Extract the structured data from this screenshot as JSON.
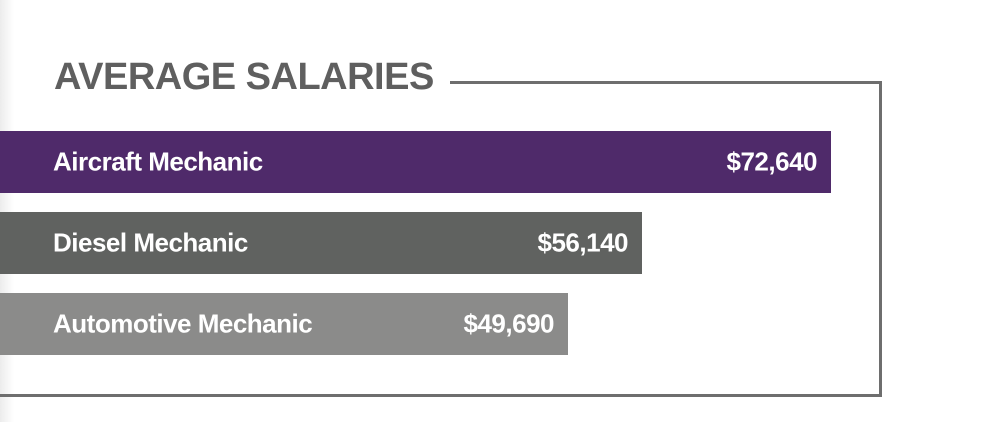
{
  "chart_data": {
    "type": "bar",
    "orientation": "horizontal",
    "title": "AVERAGE SALARIES",
    "categories": [
      "Aircraft Mechanic",
      "Diesel Mechanic",
      "Automotive Mechanic"
    ],
    "values": [
      72640,
      56140,
      49690
    ],
    "value_labels": [
      "$72,640",
      "$56,140",
      "$49,690"
    ],
    "colors": [
      "#4f2a6a",
      "#606260",
      "#8b8b8a"
    ],
    "grid": false,
    "legend": "none"
  }
}
